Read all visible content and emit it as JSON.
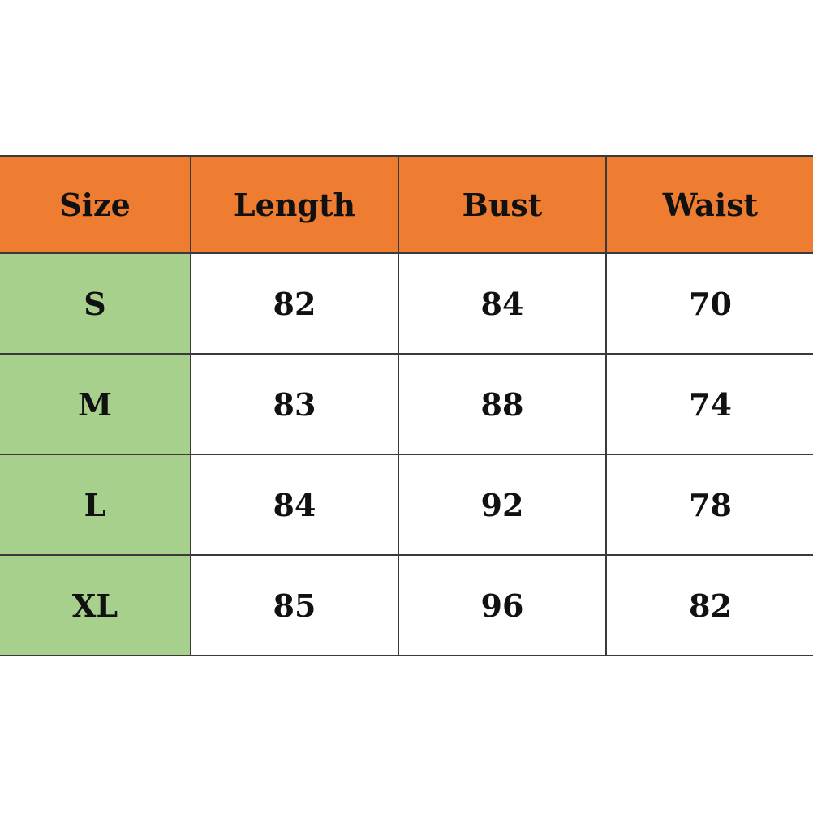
{
  "headers": [
    "Size",
    "Length",
    "Bust",
    "Waist"
  ],
  "rows": [
    [
      "S",
      "82",
      "84",
      "70"
    ],
    [
      "M",
      "83",
      "88",
      "74"
    ],
    [
      "L",
      "84",
      "92",
      "78"
    ],
    [
      "XL",
      "85",
      "96",
      "82"
    ]
  ],
  "colors": {
    "header": "#EE7D32",
    "size_column": "#A8D08D"
  }
}
